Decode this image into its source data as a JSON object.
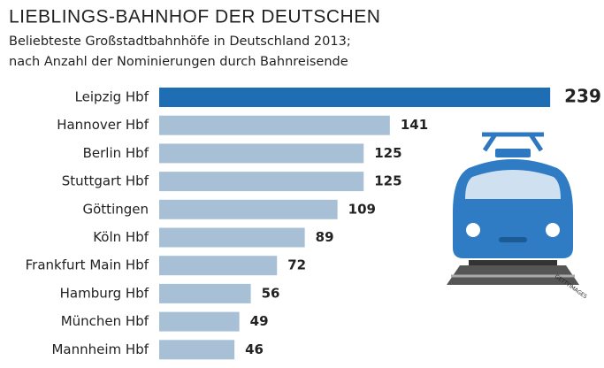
{
  "chart_data": {
    "type": "bar",
    "orientation": "horizontal",
    "title": "LIEBLINGS-BAHNHOF DER DEUTSCHEN",
    "subtitle": [
      "Beliebteste Großstadtbahnhöfe in Deutschland 2013;",
      "nach Anzahl der Nominierungen durch Bahnreisende"
    ],
    "categories": [
      "Leipzig Hbf",
      "Hannover Hbf",
      "Berlin Hbf",
      "Stuttgart Hbf",
      "Göttingen",
      "Köln Hbf",
      "Frankfurt Main Hbf",
      "Hamburg Hbf",
      "München Hbf",
      "Mannheim Hbf"
    ],
    "values": [
      239,
      141,
      125,
      125,
      109,
      89,
      72,
      56,
      49,
      46
    ],
    "colors": [
      "#1f6db3",
      "#a8c0d6",
      "#a8c0d6",
      "#a8c0d6",
      "#a8c0d6",
      "#a8c0d6",
      "#a8c0d6",
      "#a8c0d6",
      "#a8c0d6",
      "#a8c0d6"
    ],
    "credit": "GETTYIMAGES"
  }
}
